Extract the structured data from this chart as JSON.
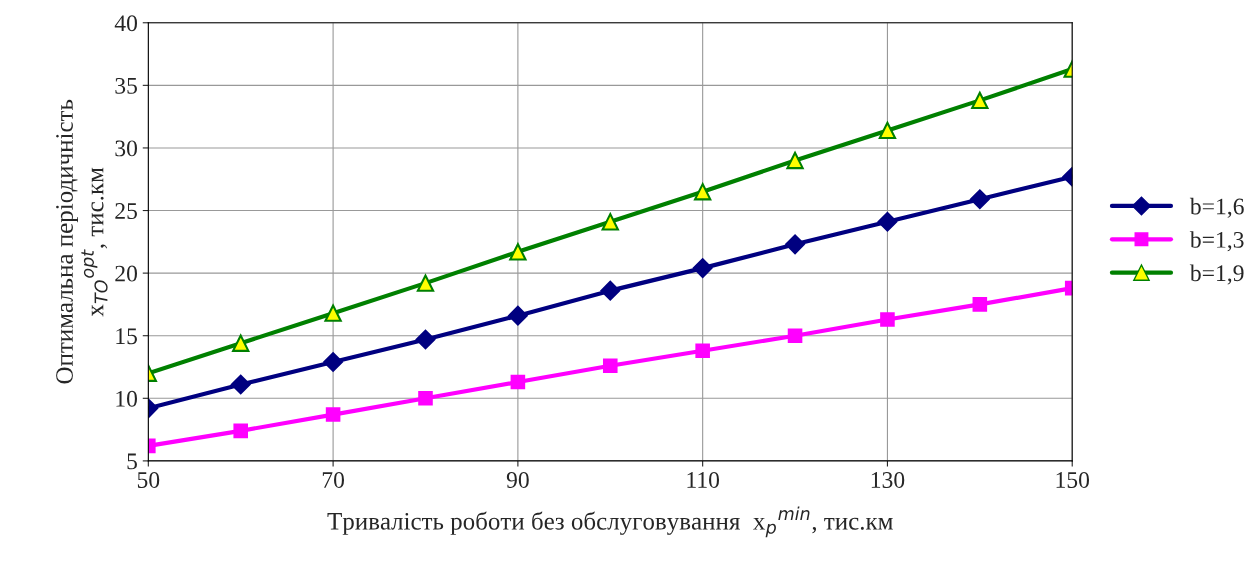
{
  "chart_data": {
    "type": "line",
    "xlabel": "Тривалість роботи без обслуговування  x$_{p}$$^{min}$, тис.км",
    "ylabel": "Оптимальна періодичність\nx$_{TO}$$^{opt}$, тис.км",
    "x": [
      50,
      60,
      70,
      80,
      90,
      100,
      110,
      120,
      130,
      140,
      150
    ],
    "series": [
      {
        "name": "b=1,6",
        "color": "#000080",
        "marker": "diamond",
        "values": [
          9.2,
          11.1,
          12.9,
          14.7,
          16.6,
          18.6,
          20.4,
          22.3,
          24.1,
          25.9,
          27.7
        ]
      },
      {
        "name": "b=1,3",
        "color": "#ff00ff",
        "marker": "square",
        "values": [
          6.2,
          7.4,
          8.7,
          10.0,
          11.3,
          12.6,
          13.8,
          15.0,
          16.3,
          17.5,
          18.8
        ]
      },
      {
        "name": "b=1,9",
        "color": "#008000",
        "marker": "triangle",
        "values": [
          12.0,
          14.4,
          16.8,
          19.2,
          21.7,
          24.1,
          26.5,
          29.0,
          31.4,
          33.8,
          36.3
        ]
      }
    ],
    "xlim": [
      50,
      150
    ],
    "xticks": [
      50,
      70,
      90,
      110,
      130,
      150
    ],
    "ylim": [
      5,
      40
    ],
    "yticks": [
      5,
      10,
      15,
      20,
      25,
      30,
      35,
      40
    ],
    "grid": true,
    "legend": "right"
  }
}
